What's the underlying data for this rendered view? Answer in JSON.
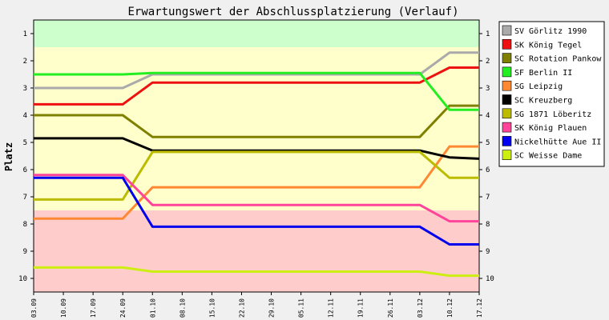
{
  "chart_data": {
    "type": "line",
    "title": "Erwartungswert der Abschlussplatzierung (Verlauf)",
    "ylabel": "Platz",
    "xlabel": "",
    "ylim": [
      0.5,
      10.5
    ],
    "y_reversed": true,
    "y_ticks": [
      1,
      2,
      3,
      4,
      5,
      6,
      7,
      8,
      9,
      10
    ],
    "x": [
      "03.09",
      "10.09",
      "17.09",
      "24.09",
      "01.10",
      "08.10",
      "15.10",
      "22.10",
      "29.10",
      "05.11",
      "12.11",
      "19.11",
      "26.11",
      "03.12",
      "10.12",
      "17.12"
    ],
    "grid": false,
    "legend_position": "right",
    "background_bands": [
      {
        "from": 0.5,
        "to": 1.5,
        "color": "#ccffcc",
        "label": "Platz 1"
      },
      {
        "from": 1.5,
        "to": 7.5,
        "color": "#ffffcc",
        "label": "Platz 2-7"
      },
      {
        "from": 7.5,
        "to": 10.5,
        "color": "#ffcccc",
        "label": "Platz 8-10"
      }
    ],
    "series": [
      {
        "name": "SV Görlitz 1990",
        "color": "#aaaaaa",
        "values": [
          3.0,
          3.0,
          3.0,
          3.0,
          2.5,
          2.5,
          2.5,
          2.5,
          2.5,
          2.5,
          2.5,
          2.5,
          2.5,
          2.5,
          1.7,
          1.7
        ]
      },
      {
        "name": "SK König Tegel",
        "color": "#ee1111",
        "values": [
          3.6,
          3.6,
          3.6,
          3.6,
          2.8,
          2.8,
          2.8,
          2.8,
          2.8,
          2.8,
          2.8,
          2.8,
          2.8,
          2.8,
          2.25,
          2.25
        ]
      },
      {
        "name": "SC Rotation Pankow",
        "color": "#808000",
        "values": [
          4.0,
          4.0,
          4.0,
          4.0,
          4.8,
          4.8,
          4.8,
          4.8,
          4.8,
          4.8,
          4.8,
          4.8,
          4.8,
          4.8,
          3.65,
          3.65
        ]
      },
      {
        "name": "SF Berlin II",
        "color": "#22ee22",
        "values": [
          2.5,
          2.5,
          2.5,
          2.5,
          2.45,
          2.45,
          2.45,
          2.45,
          2.45,
          2.45,
          2.45,
          2.45,
          2.45,
          2.45,
          3.8,
          3.8
        ]
      },
      {
        "name": "SG Leipzig",
        "color": "#ff8833",
        "values": [
          7.8,
          7.8,
          7.8,
          7.8,
          6.65,
          6.65,
          6.65,
          6.65,
          6.65,
          6.65,
          6.65,
          6.65,
          6.65,
          6.65,
          5.15,
          5.15
        ]
      },
      {
        "name": "SC Kreuzberg",
        "color": "#000000",
        "values": [
          4.85,
          4.85,
          4.85,
          4.85,
          5.3,
          5.3,
          5.3,
          5.3,
          5.3,
          5.3,
          5.3,
          5.3,
          5.3,
          5.3,
          5.55,
          5.6
        ]
      },
      {
        "name": "SG 1871 Löberitz",
        "color": "#bbbb00",
        "values": [
          7.1,
          7.1,
          7.1,
          7.1,
          5.35,
          5.35,
          5.35,
          5.35,
          5.35,
          5.35,
          5.35,
          5.35,
          5.35,
          5.35,
          6.3,
          6.3
        ]
      },
      {
        "name": "SK König Plauen",
        "color": "#ff4499",
        "values": [
          6.2,
          6.2,
          6.2,
          6.2,
          7.3,
          7.3,
          7.3,
          7.3,
          7.3,
          7.3,
          7.3,
          7.3,
          7.3,
          7.3,
          7.9,
          7.9
        ]
      },
      {
        "name": "Nickelhütte Aue II",
        "color": "#0000ee",
        "values": [
          6.3,
          6.3,
          6.3,
          6.3,
          8.1,
          8.1,
          8.1,
          8.1,
          8.1,
          8.1,
          8.1,
          8.1,
          8.1,
          8.1,
          8.75,
          8.75
        ]
      },
      {
        "name": "SC Weisse Dame",
        "color": "#ccee11",
        "values": [
          9.6,
          9.6,
          9.6,
          9.6,
          9.75,
          9.75,
          9.75,
          9.75,
          9.75,
          9.75,
          9.75,
          9.75,
          9.75,
          9.75,
          9.9,
          9.9
        ]
      }
    ]
  }
}
